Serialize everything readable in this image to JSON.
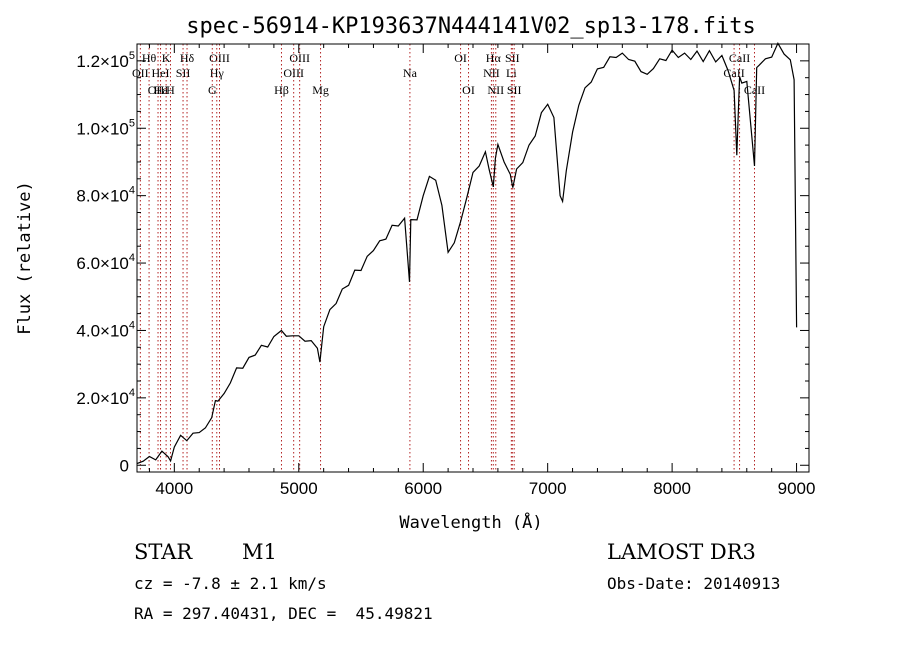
{
  "chart_data": {
    "type": "line",
    "title": "spec-56914-KP193637N444141V02_sp13-178.fits",
    "xlabel": "Wavelength (Å)",
    "ylabel": "Flux (relative)",
    "xlim": [
      3700,
      9100
    ],
    "ylim": [
      -2000,
      125000
    ],
    "x_ticks": [
      4000,
      5000,
      6000,
      7000,
      8000,
      9000
    ],
    "x_tick_labels": [
      "4000",
      "5000",
      "6000",
      "7000",
      "8000",
      "9000"
    ],
    "y_ticks": [
      0,
      20000,
      40000,
      60000,
      80000,
      100000,
      120000
    ],
    "y_tick_labels": [
      {
        "mantissa": "0",
        "exp": ""
      },
      {
        "mantissa": "2.0×10",
        "exp": "4"
      },
      {
        "mantissa": "4.0×10",
        "exp": "4"
      },
      {
        "mantissa": "6.0×10",
        "exp": "4"
      },
      {
        "mantissa": "8.0×10",
        "exp": "4"
      },
      {
        "mantissa": "1.0×10",
        "exp": "5"
      },
      {
        "mantissa": "1.2×10",
        "exp": "5"
      }
    ],
    "spectrum": {
      "x": [
        3700,
        3750,
        3800,
        3850,
        3900,
        3950,
        3970,
        4000,
        4050,
        4100,
        4150,
        4200,
        4250,
        4300,
        4330,
        4350,
        4400,
        4450,
        4500,
        4550,
        4600,
        4650,
        4700,
        4750,
        4800,
        4860,
        4900,
        4950,
        5000,
        5050,
        5100,
        5150,
        5170,
        5200,
        5250,
        5300,
        5350,
        5400,
        5450,
        5500,
        5550,
        5600,
        5650,
        5700,
        5750,
        5800,
        5850,
        5890,
        5900,
        5950,
        6000,
        6050,
        6100,
        6150,
        6200,
        6250,
        6300,
        6350,
        6400,
        6450,
        6500,
        6530,
        6563,
        6580,
        6600,
        6650,
        6700,
        6720,
        6750,
        6800,
        6850,
        6900,
        6950,
        7000,
        7050,
        7100,
        7120,
        7150,
        7200,
        7250,
        7300,
        7350,
        7400,
        7450,
        7500,
        7550,
        7600,
        7650,
        7700,
        7750,
        7800,
        7850,
        7900,
        7950,
        8000,
        8050,
        8100,
        8150,
        8200,
        8250,
        8300,
        8350,
        8400,
        8450,
        8498,
        8520,
        8542,
        8560,
        8600,
        8662,
        8680,
        8700,
        8750,
        8800,
        8850,
        8900,
        8950,
        8980,
        9000
      ],
      "y": [
        500,
        1500,
        2000,
        2500,
        3000,
        2500,
        1000,
        6000,
        8000,
        8500,
        9500,
        10000,
        10500,
        15000,
        18000,
        19000,
        21000,
        25000,
        28000,
        30000,
        32000,
        33000,
        35000,
        36000,
        37000,
        40000,
        38000,
        39000,
        37500,
        38000,
        37000,
        35000,
        30000,
        42000,
        45000,
        48000,
        52000,
        54000,
        57000,
        59000,
        62000,
        64000,
        66000,
        68000,
        70000,
        71000,
        73000,
        55000,
        72000,
        74000,
        80000,
        86000,
        84000,
        78000,
        62000,
        66000,
        72000,
        80000,
        86000,
        90000,
        93000,
        88000,
        82000,
        92000,
        94000,
        90000,
        86000,
        83000,
        87000,
        91000,
        95000,
        98000,
        104000,
        108000,
        102000,
        80000,
        78000,
        88000,
        98000,
        108000,
        112000,
        114000,
        117000,
        119000,
        120000,
        121000,
        122000,
        121000,
        119000,
        118000,
        116000,
        118000,
        120000,
        121000,
        122000,
        121000,
        122000,
        121000,
        122000,
        121000,
        123000,
        120000,
        121000,
        118000,
        110000,
        92000,
        115000,
        114000,
        113000,
        90000,
        118000,
        119000,
        120000,
        122000,
        124000,
        122000,
        120000,
        115000,
        40000
      ]
    },
    "lines": [
      {
        "label": "Hθ",
        "x": 3797,
        "row": 0
      },
      {
        "label": "OII",
        "x": 3727,
        "row": 1
      },
      {
        "label": "OIII",
        "x": 3869,
        "row": 2
      },
      {
        "label": "Hε",
        "x": 3889,
        "row": 2
      },
      {
        "label": "K",
        "x": 3934,
        "row": 0
      },
      {
        "label": "HeI",
        "x": 3889,
        "row": 1
      },
      {
        "label": "H",
        "x": 3969,
        "row": 2
      },
      {
        "label": "SII",
        "x": 4070,
        "row": 1
      },
      {
        "label": "Hδ",
        "x": 4102,
        "row": 0
      },
      {
        "label": "OIII",
        "x": 4363,
        "row": 0
      },
      {
        "label": "Hγ",
        "x": 4341,
        "row": 1
      },
      {
        "label": "G",
        "x": 4305,
        "row": 2
      },
      {
        "label": "Hβ",
        "x": 4861,
        "row": 2
      },
      {
        "label": "OIII",
        "x": 4959,
        "row": 1
      },
      {
        "label": "OIII",
        "x": 5007,
        "row": 0
      },
      {
        "label": "Mg",
        "x": 5175,
        "row": 2
      },
      {
        "label": "Na",
        "x": 5893,
        "row": 1
      },
      {
        "label": "OI",
        "x": 6300,
        "row": 0
      },
      {
        "label": "OI",
        "x": 6364,
        "row": 2
      },
      {
        "label": "Hα",
        "x": 6563,
        "row": 0
      },
      {
        "label": "NII",
        "x": 6548,
        "row": 1
      },
      {
        "label": "NII",
        "x": 6583,
        "row": 2
      },
      {
        "label": "SII",
        "x": 6716,
        "row": 0
      },
      {
        "label": "Li",
        "x": 6708,
        "row": 1
      },
      {
        "label": "SII",
        "x": 6731,
        "row": 2
      },
      {
        "label": "CaII",
        "x": 8542,
        "row": 0
      },
      {
        "label": "CaII",
        "x": 8498,
        "row": 1
      },
      {
        "label": "CaII",
        "x": 8662,
        "row": 2
      }
    ]
  },
  "info": {
    "object_class": "STAR",
    "subclass": "M1",
    "cz": "cz = -7.8 ± 2.1 km/s",
    "coords": "RA = 297.40431, DEC =  45.49821",
    "survey": "LAMOST DR3",
    "obs_date": "Obs-Date: 20140913"
  },
  "colors": {
    "lines": "#b22222",
    "spectrum": "#000000"
  }
}
